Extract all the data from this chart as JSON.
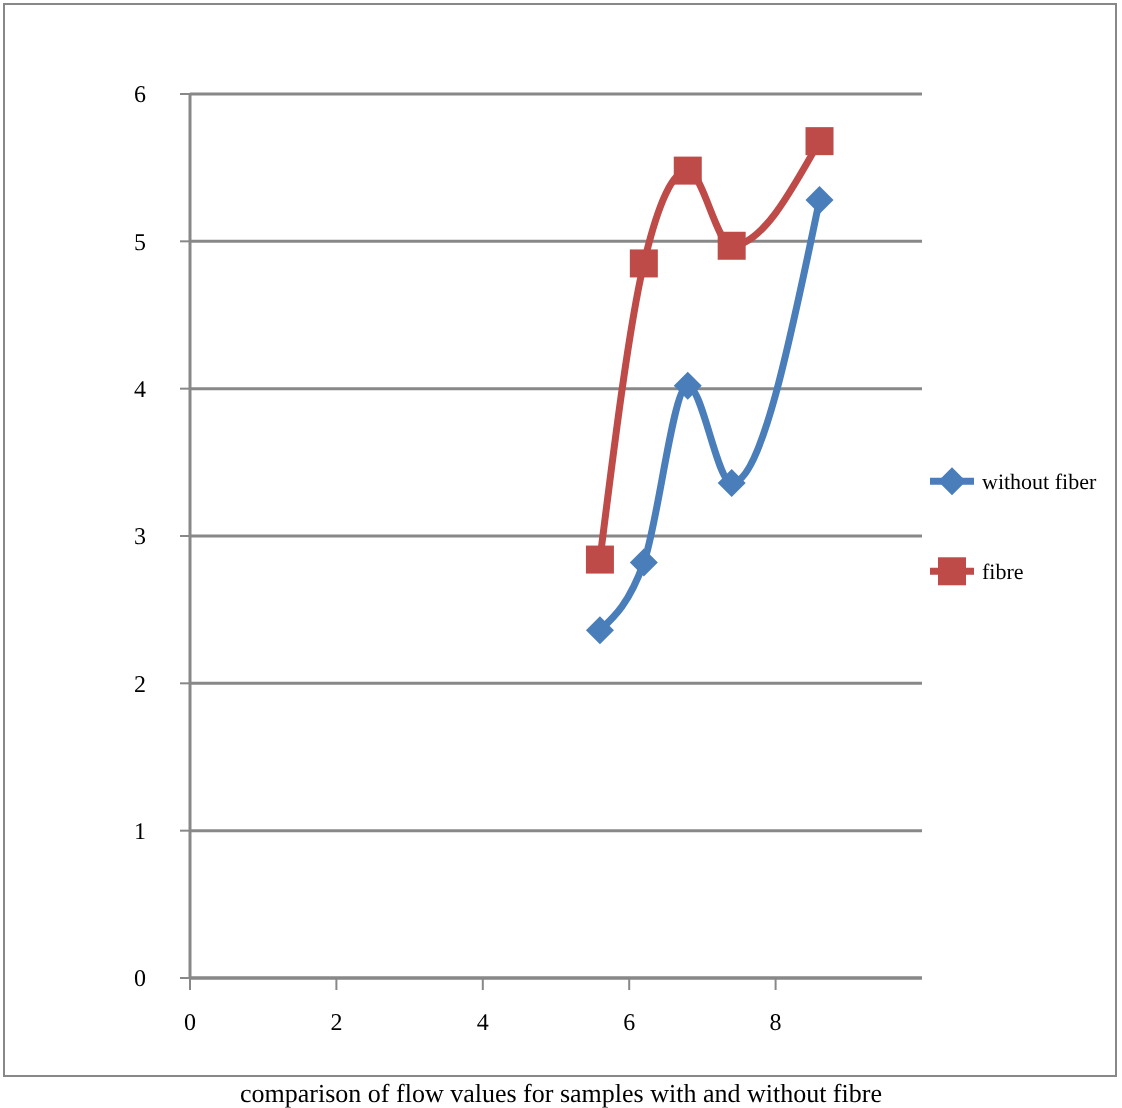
{
  "chart_data": {
    "type": "line",
    "title": "comparison of flow values for samples with and without fibre",
    "xlim": [
      0,
      10
    ],
    "xticks": [
      0,
      2,
      4,
      6,
      8
    ],
    "ylim": [
      0,
      6
    ],
    "yticks": [
      0,
      1,
      2,
      3,
      4,
      5,
      6
    ],
    "grid": "y",
    "legend": "right",
    "series": [
      {
        "name": "without fiber",
        "color": "#4a7ebb",
        "marker": "diamond",
        "x": [
          5.6,
          6.2,
          6.8,
          7.4,
          8.6
        ],
        "values": [
          2.36,
          2.82,
          4.02,
          3.36,
          5.28
        ]
      },
      {
        "name": "fibre",
        "color": "#be4b48",
        "marker": "square",
        "x": [
          5.6,
          6.2,
          6.8,
          7.4,
          8.6
        ],
        "values": [
          2.84,
          4.85,
          5.48,
          4.97,
          5.68
        ]
      }
    ]
  }
}
